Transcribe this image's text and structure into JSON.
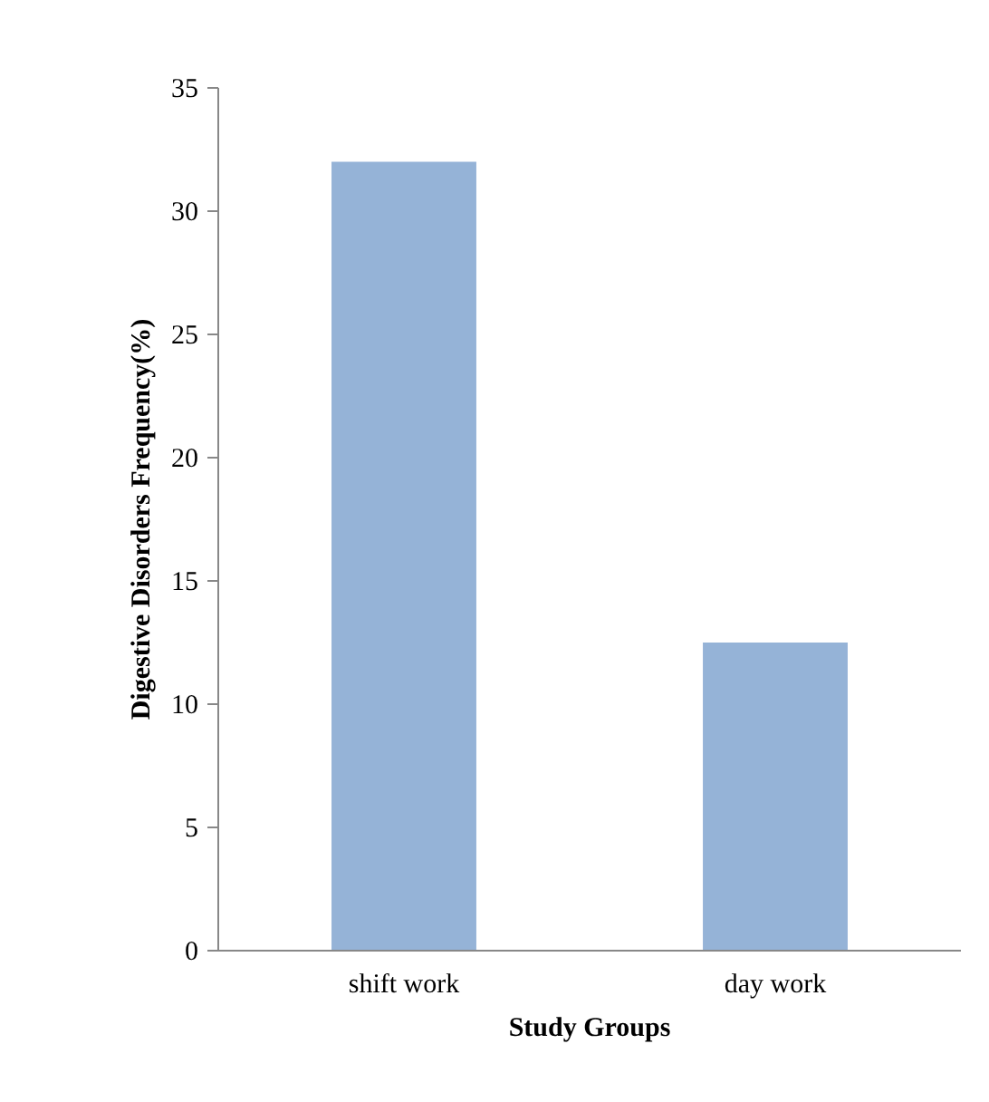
{
  "chart_data": {
    "type": "bar",
    "xlabel": "Study Groups",
    "ylabel": "Digestive Disorders Frequency(%)",
    "categories": [
      "shift work",
      "day work"
    ],
    "values": [
      32,
      12.5
    ],
    "color": "#95b3d7",
    "ylim": [
      0,
      35
    ],
    "yticks": [
      0,
      5,
      10,
      15,
      20,
      25,
      30,
      35
    ],
    "grid": false
  }
}
